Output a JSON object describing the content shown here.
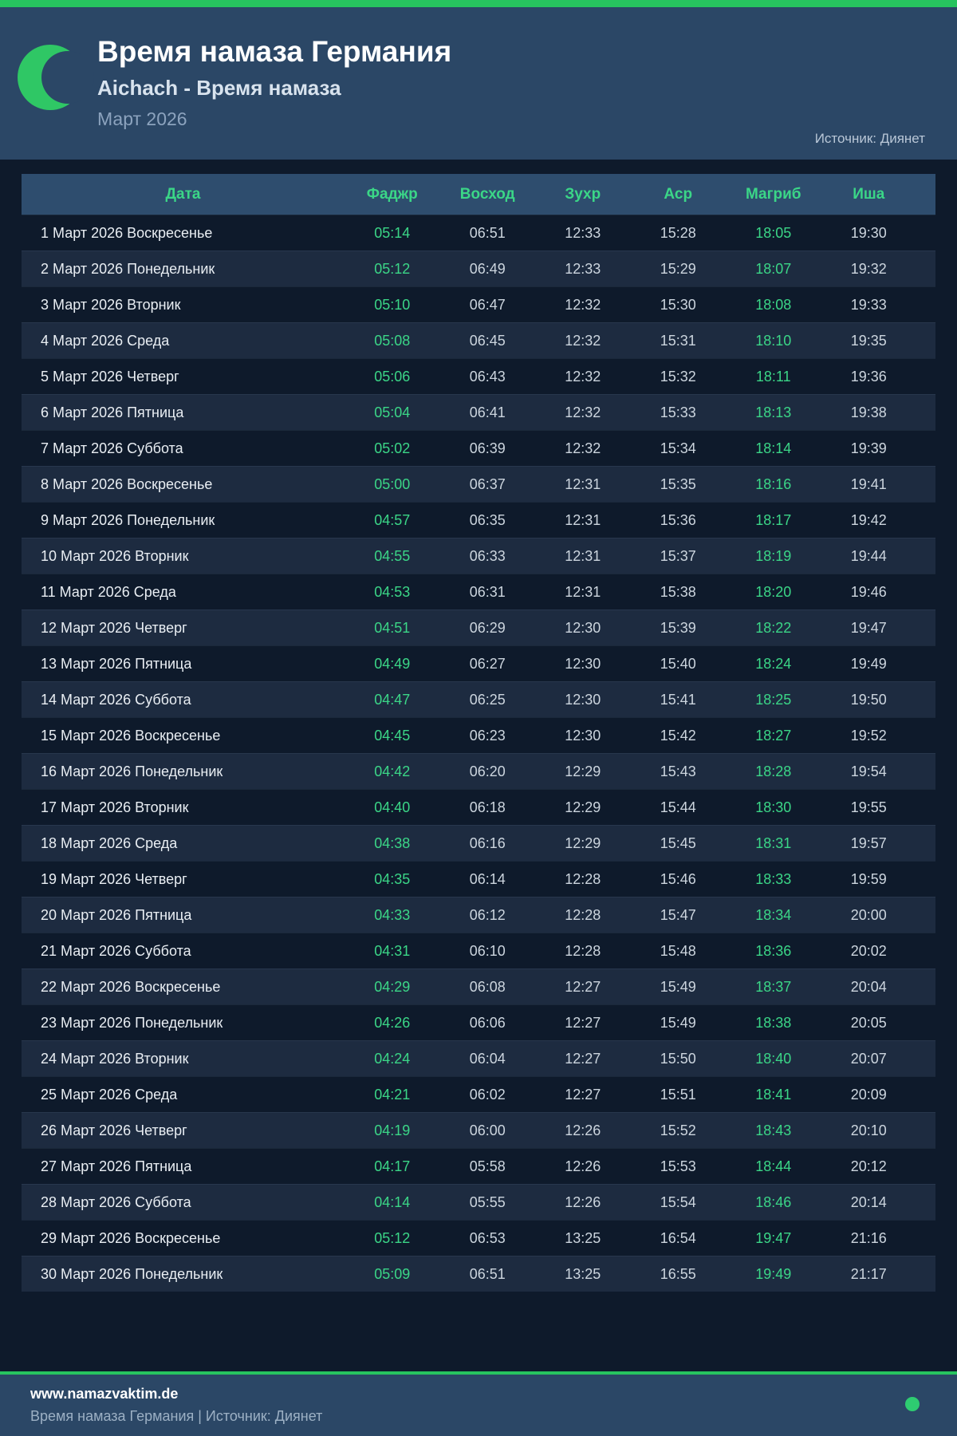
{
  "colors": {
    "accent_green": "#27c45f",
    "highlight_green": "#3bd687",
    "panel_navy": "#2b4766",
    "page_navy": "#0e1a2b"
  },
  "header": {
    "title": "Время намаза Германия",
    "subtitle": "Aichach - Время намаза",
    "month": "Март 2026",
    "source": "Источник: Диянет",
    "icon": "crescent-moon-icon"
  },
  "table": {
    "columns": [
      "Дата",
      "Фаджр",
      "Восход",
      "Зухр",
      "Аср",
      "Магриб",
      "Иша"
    ],
    "highlighted_time_columns": [
      "Фаджр",
      "Магриб"
    ],
    "rows": [
      {
        "date": "1 Март 2026 Воскресенье",
        "times": [
          "05:14",
          "06:51",
          "12:33",
          "15:28",
          "18:05",
          "19:30"
        ]
      },
      {
        "date": "2 Март 2026 Понедельник",
        "times": [
          "05:12",
          "06:49",
          "12:33",
          "15:29",
          "18:07",
          "19:32"
        ]
      },
      {
        "date": "3 Март 2026 Вторник",
        "times": [
          "05:10",
          "06:47",
          "12:32",
          "15:30",
          "18:08",
          "19:33"
        ]
      },
      {
        "date": "4 Март 2026 Среда",
        "times": [
          "05:08",
          "06:45",
          "12:32",
          "15:31",
          "18:10",
          "19:35"
        ]
      },
      {
        "date": "5 Март 2026 Четверг",
        "times": [
          "05:06",
          "06:43",
          "12:32",
          "15:32",
          "18:11",
          "19:36"
        ]
      },
      {
        "date": "6 Март 2026 Пятница",
        "times": [
          "05:04",
          "06:41",
          "12:32",
          "15:33",
          "18:13",
          "19:38"
        ]
      },
      {
        "date": "7 Март 2026 Суббота",
        "times": [
          "05:02",
          "06:39",
          "12:32",
          "15:34",
          "18:14",
          "19:39"
        ]
      },
      {
        "date": "8 Март 2026 Воскресенье",
        "times": [
          "05:00",
          "06:37",
          "12:31",
          "15:35",
          "18:16",
          "19:41"
        ]
      },
      {
        "date": "9 Март 2026 Понедельник",
        "times": [
          "04:57",
          "06:35",
          "12:31",
          "15:36",
          "18:17",
          "19:42"
        ]
      },
      {
        "date": "10 Март 2026 Вторник",
        "times": [
          "04:55",
          "06:33",
          "12:31",
          "15:37",
          "18:19",
          "19:44"
        ]
      },
      {
        "date": "11 Март 2026 Среда",
        "times": [
          "04:53",
          "06:31",
          "12:31",
          "15:38",
          "18:20",
          "19:46"
        ]
      },
      {
        "date": "12 Март 2026 Четверг",
        "times": [
          "04:51",
          "06:29",
          "12:30",
          "15:39",
          "18:22",
          "19:47"
        ]
      },
      {
        "date": "13 Март 2026 Пятница",
        "times": [
          "04:49",
          "06:27",
          "12:30",
          "15:40",
          "18:24",
          "19:49"
        ]
      },
      {
        "date": "14 Март 2026 Суббота",
        "times": [
          "04:47",
          "06:25",
          "12:30",
          "15:41",
          "18:25",
          "19:50"
        ]
      },
      {
        "date": "15 Март 2026 Воскресенье",
        "times": [
          "04:45",
          "06:23",
          "12:30",
          "15:42",
          "18:27",
          "19:52"
        ]
      },
      {
        "date": "16 Март 2026 Понедельник",
        "times": [
          "04:42",
          "06:20",
          "12:29",
          "15:43",
          "18:28",
          "19:54"
        ]
      },
      {
        "date": "17 Март 2026 Вторник",
        "times": [
          "04:40",
          "06:18",
          "12:29",
          "15:44",
          "18:30",
          "19:55"
        ]
      },
      {
        "date": "18 Март 2026 Среда",
        "times": [
          "04:38",
          "06:16",
          "12:29",
          "15:45",
          "18:31",
          "19:57"
        ]
      },
      {
        "date": "19 Март 2026 Четверг",
        "times": [
          "04:35",
          "06:14",
          "12:28",
          "15:46",
          "18:33",
          "19:59"
        ]
      },
      {
        "date": "20 Март 2026 Пятница",
        "times": [
          "04:33",
          "06:12",
          "12:28",
          "15:47",
          "18:34",
          "20:00"
        ]
      },
      {
        "date": "21 Март 2026 Суббота",
        "times": [
          "04:31",
          "06:10",
          "12:28",
          "15:48",
          "18:36",
          "20:02"
        ]
      },
      {
        "date": "22 Март 2026 Воскресенье",
        "times": [
          "04:29",
          "06:08",
          "12:27",
          "15:49",
          "18:37",
          "20:04"
        ]
      },
      {
        "date": "23 Март 2026 Понедельник",
        "times": [
          "04:26",
          "06:06",
          "12:27",
          "15:49",
          "18:38",
          "20:05"
        ]
      },
      {
        "date": "24 Март 2026 Вторник",
        "times": [
          "04:24",
          "06:04",
          "12:27",
          "15:50",
          "18:40",
          "20:07"
        ]
      },
      {
        "date": "25 Март 2026 Среда",
        "times": [
          "04:21",
          "06:02",
          "12:27",
          "15:51",
          "18:41",
          "20:09"
        ]
      },
      {
        "date": "26 Март 2026 Четверг",
        "times": [
          "04:19",
          "06:00",
          "12:26",
          "15:52",
          "18:43",
          "20:10"
        ]
      },
      {
        "date": "27 Март 2026 Пятница",
        "times": [
          "04:17",
          "05:58",
          "12:26",
          "15:53",
          "18:44",
          "20:12"
        ]
      },
      {
        "date": "28 Март 2026 Суббота",
        "times": [
          "04:14",
          "05:55",
          "12:26",
          "15:54",
          "18:46",
          "20:14"
        ]
      },
      {
        "date": "29 Март 2026 Воскресенье",
        "times": [
          "05:12",
          "06:53",
          "13:25",
          "16:54",
          "19:47",
          "21:16"
        ]
      },
      {
        "date": "30 Март 2026 Понедельник",
        "times": [
          "05:09",
          "06:51",
          "13:25",
          "16:55",
          "19:49",
          "21:17"
        ]
      }
    ]
  },
  "footer": {
    "site": "www.namazvaktim.de",
    "tagline": "Время намаза Германия | Источник: Диянет"
  }
}
